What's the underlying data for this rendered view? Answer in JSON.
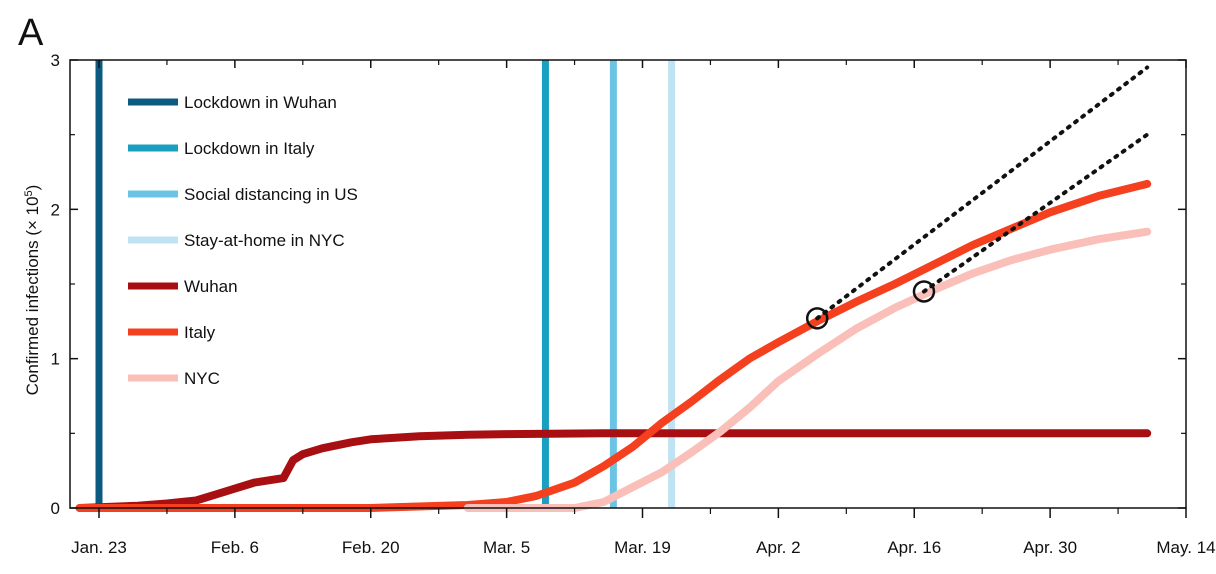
{
  "panel_label": "A",
  "chart_data": {
    "type": "line",
    "title": "",
    "ylabel": "Confirmed infections (× 10",
    "ylabel_exp": "5",
    "ylabel_close": ")",
    "xlabel": "",
    "ylim": [
      0,
      3
    ],
    "y_ticks": [
      "0",
      "1",
      "2",
      "3"
    ],
    "x_tick_labels": [
      "Jan. 23",
      "Feb. 6",
      "Feb. 20",
      "Mar. 5",
      "Mar. 19",
      "Apr. 2",
      "Apr. 16",
      "Apr. 30",
      "May. 14"
    ],
    "grid": false,
    "legend_position": "top-left",
    "events": [
      {
        "name": "Lockdown in Wuhan",
        "date": "Jan. 23",
        "color": "#0d5a80"
      },
      {
        "name": "Lockdown in Italy",
        "date": "Mar. 9",
        "color": "#1b9fc1"
      },
      {
        "name": "Social distancing in US",
        "date": "Mar. 16",
        "color": "#6cc4e4"
      },
      {
        "name": "Stay-at-home in NYC",
        "date": "Mar. 22",
        "color": "#bfe3f2"
      }
    ],
    "series": [
      {
        "name": "Wuhan",
        "color": "#a80f12",
        "x": [
          "Jan. 21",
          "Jan. 25",
          "Jan. 27",
          "Jan. 30",
          "Feb. 2",
          "Feb. 4",
          "Feb. 6",
          "Feb. 8",
          "Feb. 11",
          "Feb. 12",
          "Feb. 13",
          "Feb. 15",
          "Feb. 18",
          "Feb. 20",
          "Feb. 25",
          "Mar. 1",
          "Mar. 5",
          "Mar. 15",
          "Apr. 1",
          "May. 10"
        ],
        "values": [
          0.0,
          0.01,
          0.015,
          0.03,
          0.05,
          0.09,
          0.13,
          0.17,
          0.2,
          0.32,
          0.36,
          0.4,
          0.44,
          0.46,
          0.48,
          0.49,
          0.495,
          0.5,
          0.5,
          0.5
        ]
      },
      {
        "name": "Italy",
        "color": "#f4401e",
        "x": [
          "Jan. 21",
          "Feb. 20",
          "Mar. 1",
          "Mar. 5",
          "Mar. 8",
          "Mar. 12",
          "Mar. 15",
          "Mar. 18",
          "Mar. 21",
          "Mar. 24",
          "Mar. 27",
          "Mar. 30",
          "Apr. 2",
          "Apr. 6",
          "Apr. 10",
          "Apr. 14",
          "Apr. 18",
          "Apr. 22",
          "Apr. 26",
          "Apr. 30",
          "May. 5",
          "May. 10"
        ],
        "values": [
          0.0,
          0.0,
          0.02,
          0.04,
          0.08,
          0.17,
          0.28,
          0.41,
          0.57,
          0.71,
          0.86,
          1.0,
          1.11,
          1.25,
          1.38,
          1.5,
          1.63,
          1.76,
          1.87,
          1.98,
          2.09,
          2.17
        ]
      },
      {
        "name": "NYC",
        "color": "#f9bfb8",
        "x": [
          "Mar. 1",
          "Mar. 12",
          "Mar. 15",
          "Mar. 18",
          "Mar. 21",
          "Mar. 24",
          "Mar. 27",
          "Mar. 30",
          "Apr. 2",
          "Apr. 6",
          "Apr. 10",
          "Apr. 14",
          "Apr. 18",
          "Apr. 22",
          "Apr. 26",
          "Apr. 30",
          "May. 5",
          "May. 10"
        ],
        "values": [
          0.0,
          0.0,
          0.04,
          0.14,
          0.24,
          0.37,
          0.51,
          0.67,
          0.85,
          1.03,
          1.2,
          1.34,
          1.46,
          1.57,
          1.66,
          1.73,
          1.8,
          1.85
        ]
      }
    ],
    "annotations": [
      {
        "type": "circle",
        "date": "Apr. 6",
        "value": 1.27
      },
      {
        "type": "circle",
        "date": "Apr. 17",
        "value": 1.45
      },
      {
        "type": "dotted-line",
        "from_date": "Apr. 6",
        "from_value": 1.27,
        "to_date": "May. 10",
        "to_value": 2.95
      },
      {
        "type": "dotted-line",
        "from_date": "Apr. 17",
        "from_value": 1.45,
        "to_date": "May. 10",
        "to_value": 2.5
      }
    ]
  }
}
